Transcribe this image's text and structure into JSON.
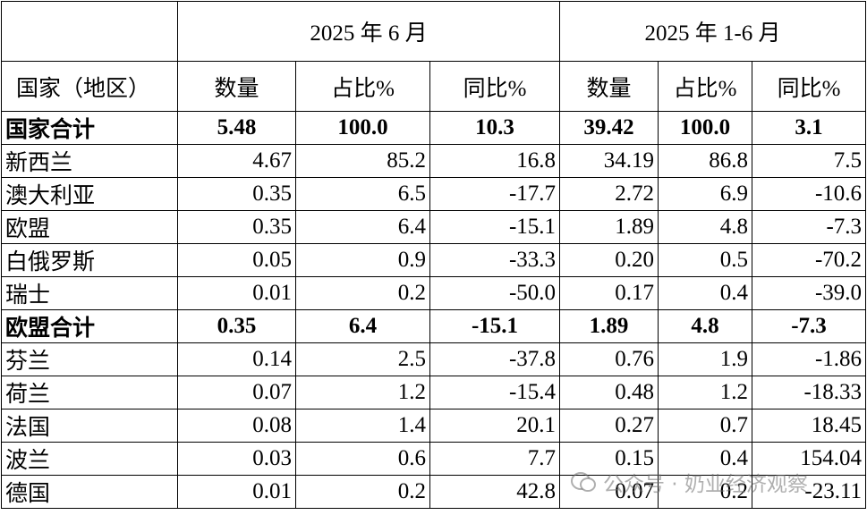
{
  "table": {
    "header_groups": [
      "2025 年 6 月",
      "2025 年 1-6 月"
    ],
    "columns": [
      "国家（地区）",
      "数量",
      "占比%",
      "同比%",
      "数量",
      "占比%",
      "同比%"
    ],
    "rows": [
      [
        "国家合计",
        "5.48",
        "100.0",
        "10.3",
        "39.42",
        "100.0",
        "3.1"
      ],
      [
        "新西兰",
        "4.67",
        "85.2",
        "16.8",
        "34.19",
        "86.8",
        "7.5"
      ],
      [
        "澳大利亚",
        "0.35",
        "6.5",
        "-17.7",
        "2.72",
        "6.9",
        "-10.6"
      ],
      [
        "欧盟",
        "0.35",
        "6.4",
        "-15.1",
        "1.89",
        "4.8",
        "-7.3"
      ],
      [
        "白俄罗斯",
        "0.05",
        "0.9",
        "-33.3",
        "0.20",
        "0.5",
        "-70.2"
      ],
      [
        "瑞士",
        "0.01",
        "0.2",
        "-50.0",
        "0.17",
        "0.4",
        "-39.0"
      ],
      [
        "欧盟合计",
        "0.35",
        "6.4",
        "-15.1",
        "1.89",
        "4.8",
        "-7.3"
      ],
      [
        "芬兰",
        "0.14",
        "2.5",
        "-37.8",
        "0.76",
        "1.9",
        "-1.86"
      ],
      [
        "荷兰",
        "0.07",
        "1.2",
        "-15.4",
        "0.48",
        "1.2",
        "-18.33"
      ],
      [
        "法国",
        "0.08",
        "1.4",
        "20.1",
        "0.27",
        "0.7",
        "18.45"
      ],
      [
        "波兰",
        "0.03",
        "0.6",
        "7.7",
        "0.15",
        "0.4",
        "154.04"
      ],
      [
        "德国",
        "0.01",
        "0.2",
        "42.8",
        "0.07",
        "0.2",
        "-23.11"
      ]
    ]
  },
  "watermark": "公众号 · 奶业经济观察"
}
